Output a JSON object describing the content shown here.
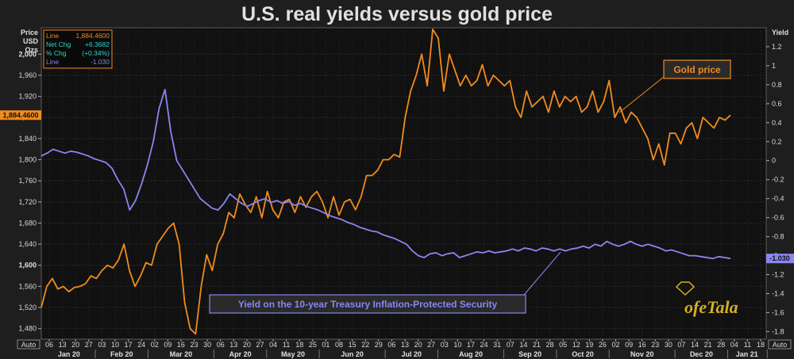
{
  "chart_data": {
    "type": "line",
    "title": "U.S. real yields versus gold price",
    "left_axis": {
      "label": [
        "Price",
        "USD",
        "Ozs"
      ],
      "min": 1460,
      "max": 2050,
      "ticks": [
        1480,
        1520,
        1560,
        1600,
        1640,
        1680,
        1720,
        1760,
        1800,
        1840,
        1880,
        1920,
        1960,
        2000
      ],
      "tick_labels": [
        "1,480",
        "1,520",
        "1,560",
        "1,600",
        "1,640",
        "1,680",
        "1,720",
        "1,760",
        "1,800",
        "1,840",
        "1,880",
        "1,920",
        "1,960",
        "2,000"
      ]
    },
    "right_axis": {
      "label": "Yield",
      "min": -1.88,
      "max": 1.4,
      "ticks": [
        1.2,
        1,
        0.8,
        0.6,
        0.4,
        0.2,
        0,
        -0.2,
        -0.4,
        -0.6,
        -0.8,
        -1,
        -1.2,
        -1.4,
        -1.6,
        -1.8
      ],
      "tick_labels": [
        "1.2",
        "1",
        "0.8",
        "0.6",
        "0.4",
        "0.2",
        "0",
        "-0.2",
        "-0.4",
        "-0.6",
        "-0.8",
        "-1",
        "-1.2",
        "-1.4",
        "-1.6",
        "-1.8"
      ]
    },
    "x_axis": {
      "day_labels": [
        "06",
        "13",
        "20",
        "27",
        "03",
        "10",
        "17",
        "24",
        "02",
        "09",
        "16",
        "23",
        "30",
        "06",
        "13",
        "20",
        "27",
        "04",
        "11",
        "18",
        "25",
        "01",
        "08",
        "15",
        "22",
        "29",
        "06",
        "13",
        "20",
        "27",
        "03",
        "10",
        "17",
        "24",
        "31",
        "07",
        "14",
        "21",
        "28",
        "05",
        "12",
        "19",
        "26",
        "02",
        "09",
        "16",
        "23",
        "30",
        "07",
        "14",
        "21",
        "28",
        "04",
        "11",
        "18"
      ],
      "month_labels": [
        "Jan 20",
        "Feb 20",
        "Mar 20",
        "Apr 20",
        "May 20",
        "Jun 20",
        "Jul 20",
        "Aug 20",
        "Sep 20",
        "Oct 20",
        "Nov 20",
        "Dec 20",
        "Jan 21"
      ],
      "auto_label": "Auto"
    },
    "series": [
      {
        "name": "Gold price",
        "axis": "left",
        "color": "#f08c1e",
        "values": [
          1520,
          1560,
          1575,
          1555,
          1560,
          1550,
          1558,
          1560,
          1565,
          1580,
          1575,
          1590,
          1600,
          1595,
          1610,
          1640,
          1590,
          1560,
          1580,
          1605,
          1600,
          1640,
          1655,
          1670,
          1680,
          1640,
          1530,
          1480,
          1470,
          1560,
          1620,
          1590,
          1640,
          1660,
          1700,
          1690,
          1735,
          1715,
          1700,
          1730,
          1690,
          1740,
          1705,
          1690,
          1720,
          1725,
          1700,
          1730,
          1710,
          1730,
          1740,
          1720,
          1690,
          1730,
          1695,
          1720,
          1725,
          1705,
          1730,
          1770,
          1770,
          1780,
          1800,
          1800,
          1810,
          1805,
          1880,
          1930,
          1960,
          2000,
          1940,
          2060,
          2030,
          1930,
          2000,
          1970,
          1940,
          1960,
          1940,
          1950,
          1980,
          1940,
          1960,
          1950,
          1940,
          1950,
          1900,
          1880,
          1930,
          1900,
          1910,
          1920,
          1890,
          1930,
          1900,
          1920,
          1910,
          1920,
          1890,
          1900,
          1930,
          1890,
          1910,
          1950,
          1880,
          1900,
          1870,
          1890,
          1880,
          1860,
          1840,
          1800,
          1830,
          1790,
          1850,
          1850,
          1830,
          1860,
          1870,
          1840,
          1880,
          1870,
          1860,
          1880,
          1875,
          1884.46
        ],
        "last_label": "1,884.4600"
      },
      {
        "name": "Yield on the 10-year Treasury Inflation-Protected Security",
        "axis": "right",
        "color": "#8a86f0",
        "values": [
          0.05,
          0.08,
          0.12,
          0.1,
          0.08,
          0.1,
          0.09,
          0.07,
          0.05,
          0.02,
          0.0,
          -0.02,
          -0.08,
          -0.2,
          -0.3,
          -0.52,
          -0.42,
          -0.25,
          -0.05,
          0.2,
          0.55,
          0.75,
          0.3,
          0.0,
          -0.1,
          -0.2,
          -0.3,
          -0.4,
          -0.45,
          -0.5,
          -0.52,
          -0.45,
          -0.35,
          -0.4,
          -0.45,
          -0.48,
          -0.45,
          -0.42,
          -0.4,
          -0.44,
          -0.42,
          -0.45,
          -0.43,
          -0.47,
          -0.45,
          -0.48,
          -0.5,
          -0.52,
          -0.55,
          -0.58,
          -0.6,
          -0.62,
          -0.65,
          -0.67,
          -0.7,
          -0.72,
          -0.74,
          -0.75,
          -0.78,
          -0.8,
          -0.82,
          -0.85,
          -0.88,
          -0.95,
          -1.0,
          -1.02,
          -0.98,
          -0.97,
          -1.0,
          -0.98,
          -0.97,
          -1.02,
          -1.0,
          -0.98,
          -0.96,
          -0.97,
          -0.95,
          -0.97,
          -0.96,
          -0.95,
          -0.93,
          -0.95,
          -0.92,
          -0.93,
          -0.95,
          -0.92,
          -0.93,
          -0.95,
          -0.93,
          -0.95,
          -0.93,
          -0.92,
          -0.9,
          -0.92,
          -0.88,
          -0.9,
          -0.85,
          -0.88,
          -0.9,
          -0.88,
          -0.85,
          -0.88,
          -0.9,
          -0.88,
          -0.9,
          -0.92,
          -0.95,
          -0.94,
          -0.96,
          -0.98,
          -1.0,
          -1.0,
          -1.01,
          -1.02,
          -1.03,
          -1.01,
          -1.02,
          -1.03
        ],
        "last_label": "-1.030"
      }
    ],
    "legend": {
      "rows": [
        {
          "name": "Line",
          "value": "1,884.4600",
          "color": "#f08c1e"
        },
        {
          "name": "Net Chg",
          "value": "+6.3682",
          "color": "#2fd8c8"
        },
        {
          "name": "% Chg",
          "value": "(+0.34%)",
          "color": "#2fd8c8"
        },
        {
          "name": "Line",
          "value": "-1.030",
          "color": "#8a86f0"
        }
      ]
    },
    "annotations": {
      "gold": "Gold price",
      "yield": "Yield on the 10-year Treasury Inflation-Protected Security"
    },
    "grid": true
  },
  "watermark": "ofeTala",
  "colors": {
    "background": "#1e1e1e",
    "plot_bg": "#111111",
    "grid": "#3a3a3a",
    "gold": "#f08c1e",
    "yield": "#8a86f0",
    "legend_teal": "#2fd8c8",
    "watermark": "#d4b020"
  }
}
